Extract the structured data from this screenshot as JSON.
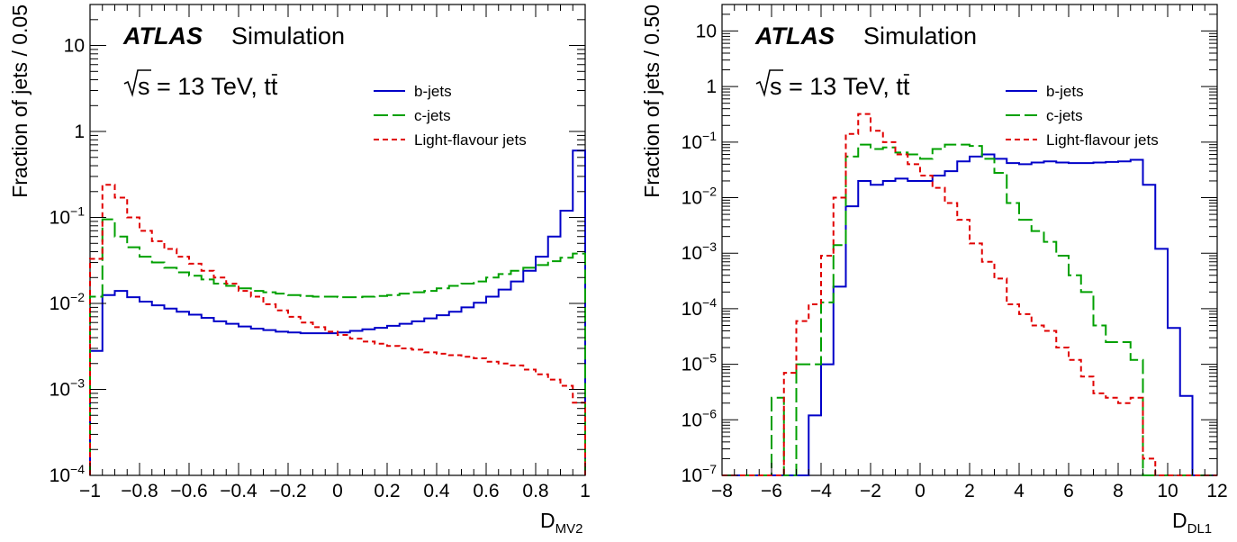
{
  "chart_data": [
    {
      "type": "line",
      "subtype": "histogram-step",
      "title": "",
      "atlas_label": "ATLAS",
      "atlas_sub": "Simulation",
      "annotation_prefix": "s = 13 TeV, t",
      "annotation_bar_letter": "t",
      "xlabel_main": "D",
      "xlabel_sub": "MV2",
      "ylabel": "Fraction of jets / 0.05",
      "xlim": [
        -1,
        1
      ],
      "ylim": [
        0.0001,
        30
      ],
      "log_y": true,
      "x_ticks": [
        {
          "v": -1,
          "label": "−1"
        },
        {
          "v": -0.8,
          "label": "−0.8"
        },
        {
          "v": -0.6,
          "label": "−0.6"
        },
        {
          "v": -0.4,
          "label": "−0.4"
        },
        {
          "v": -0.2,
          "label": "−0.2"
        },
        {
          "v": 0,
          "label": "0"
        },
        {
          "v": 0.2,
          "label": "0.2"
        },
        {
          "v": 0.4,
          "label": "0.4"
        },
        {
          "v": 0.6,
          "label": "0.6"
        },
        {
          "v": 0.8,
          "label": "0.8"
        },
        {
          "v": 1,
          "label": "1"
        }
      ],
      "y_ticks": [
        {
          "v": 0.0001,
          "base": "10",
          "exp": "−4"
        },
        {
          "v": 0.001,
          "base": "10",
          "exp": "−3"
        },
        {
          "v": 0.01,
          "base": "10",
          "exp": "−2"
        },
        {
          "v": 0.1,
          "base": "10",
          "exp": "−1"
        },
        {
          "v": 1,
          "base": "1",
          "exp": ""
        },
        {
          "v": 10,
          "base": "10",
          "exp": ""
        }
      ],
      "x_minor_step": 0.05,
      "legend_position": "top-right",
      "bin_edges": [
        -1.0,
        -0.95,
        -0.9,
        -0.85,
        -0.8,
        -0.75,
        -0.7,
        -0.65,
        -0.6,
        -0.55,
        -0.5,
        -0.45,
        -0.4,
        -0.35,
        -0.3,
        -0.25,
        -0.2,
        -0.15,
        -0.1,
        -0.05,
        0.0,
        0.05,
        0.1,
        0.15,
        0.2,
        0.25,
        0.3,
        0.35,
        0.4,
        0.45,
        0.5,
        0.55,
        0.6,
        0.65,
        0.7,
        0.75,
        0.8,
        0.85,
        0.9,
        0.95,
        1.0
      ],
      "series": [
        {
          "name": "b-jets",
          "color": "#0000c8",
          "style": "solid",
          "values": [
            0.0028,
            0.0125,
            0.014,
            0.0118,
            0.0105,
            0.0095,
            0.0087,
            0.008,
            0.0074,
            0.0068,
            0.0062,
            0.0058,
            0.0054,
            0.0051,
            0.0049,
            0.0047,
            0.0046,
            0.0045,
            0.0045,
            0.0045,
            0.0046,
            0.0048,
            0.005,
            0.0052,
            0.0055,
            0.0058,
            0.0062,
            0.0067,
            0.0073,
            0.008,
            0.009,
            0.0102,
            0.012,
            0.0145,
            0.018,
            0.024,
            0.035,
            0.06,
            0.12,
            0.6
          ]
        },
        {
          "name": "c-jets",
          "color": "#00a000",
          "style": "dashed",
          "values": [
            0.012,
            0.095,
            0.06,
            0.045,
            0.035,
            0.03,
            0.026,
            0.023,
            0.021,
            0.019,
            0.017,
            0.016,
            0.015,
            0.014,
            0.0135,
            0.013,
            0.0125,
            0.0122,
            0.012,
            0.012,
            0.0118,
            0.0118,
            0.012,
            0.0122,
            0.0125,
            0.013,
            0.0135,
            0.014,
            0.015,
            0.016,
            0.017,
            0.018,
            0.02,
            0.022,
            0.024,
            0.026,
            0.028,
            0.031,
            0.034,
            0.038
          ]
        },
        {
          "name": "Light-flavour jets",
          "color": "#e00000",
          "style": "dotted",
          "values": [
            0.033,
            0.24,
            0.17,
            0.1,
            0.07,
            0.053,
            0.043,
            0.035,
            0.029,
            0.024,
            0.02,
            0.017,
            0.014,
            0.012,
            0.0098,
            0.0083,
            0.007,
            0.006,
            0.0053,
            0.0047,
            0.0043,
            0.0039,
            0.0036,
            0.0034,
            0.0032,
            0.003,
            0.0029,
            0.0027,
            0.0026,
            0.0025,
            0.0024,
            0.0023,
            0.0021,
            0.002,
            0.0019,
            0.0017,
            0.0015,
            0.0013,
            0.0011,
            0.0007
          ]
        }
      ]
    },
    {
      "type": "line",
      "subtype": "histogram-step",
      "title": "",
      "atlas_label": "ATLAS",
      "atlas_sub": "Simulation",
      "annotation_prefix": "s = 13 TeV, t",
      "annotation_bar_letter": "t",
      "xlabel_main": "D",
      "xlabel_sub": "DL1",
      "ylabel": "Fraction of jets / 0.50",
      "xlim": [
        -8,
        12
      ],
      "ylim": [
        1e-07,
        30
      ],
      "log_y": true,
      "x_ticks": [
        {
          "v": -8,
          "label": "−8"
        },
        {
          "v": -6,
          "label": "−6"
        },
        {
          "v": -4,
          "label": "−4"
        },
        {
          "v": -2,
          "label": "−2"
        },
        {
          "v": 0,
          "label": "0"
        },
        {
          "v": 2,
          "label": "2"
        },
        {
          "v": 4,
          "label": "4"
        },
        {
          "v": 6,
          "label": "6"
        },
        {
          "v": 8,
          "label": "8"
        },
        {
          "v": 10,
          "label": "10"
        },
        {
          "v": 12,
          "label": "12"
        }
      ],
      "y_ticks": [
        {
          "v": 1e-07,
          "base": "10",
          "exp": "−7"
        },
        {
          "v": 1e-06,
          "base": "10",
          "exp": "−6"
        },
        {
          "v": 1e-05,
          "base": "10",
          "exp": "−5"
        },
        {
          "v": 0.0001,
          "base": "10",
          "exp": "−4"
        },
        {
          "v": 0.001,
          "base": "10",
          "exp": "−3"
        },
        {
          "v": 0.01,
          "base": "10",
          "exp": "−2"
        },
        {
          "v": 0.1,
          "base": "10",
          "exp": "−1"
        },
        {
          "v": 1,
          "base": "1",
          "exp": ""
        },
        {
          "v": 10,
          "base": "10",
          "exp": ""
        }
      ],
      "x_minor_step": 0.5,
      "legend_position": "top-right",
      "bin_edges": [
        -8.0,
        -7.5,
        -7.0,
        -6.5,
        -6.0,
        -5.5,
        -5.0,
        -4.5,
        -4.0,
        -3.5,
        -3.0,
        -2.5,
        -2.0,
        -1.5,
        -1.0,
        -0.5,
        0.0,
        0.5,
        1.0,
        1.5,
        2.0,
        2.5,
        3.0,
        3.5,
        4.0,
        4.5,
        5.0,
        5.5,
        6.0,
        6.5,
        7.0,
        7.5,
        8.0,
        8.5,
        9.0,
        9.5,
        10.0,
        10.5,
        11.0,
        11.5,
        12.0
      ],
      "series": [
        {
          "name": "b-jets",
          "color": "#0000c8",
          "style": "solid",
          "values": [
            1e-07,
            1e-07,
            1e-07,
            1e-07,
            1e-07,
            1e-07,
            1e-07,
            1.2e-06,
            1e-05,
            0.00025,
            0.007,
            0.02,
            0.017,
            0.02,
            0.022,
            0.02,
            0.02,
            0.025,
            0.03,
            0.045,
            0.055,
            0.06,
            0.05,
            0.042,
            0.04,
            0.043,
            0.045,
            0.043,
            0.042,
            0.042,
            0.043,
            0.044,
            0.045,
            0.048,
            0.017,
            0.0012,
            4.5e-05,
            2.7e-06,
            1e-07,
            1e-07
          ]
        },
        {
          "name": "c-jets",
          "color": "#00a000",
          "style": "dashed",
          "values": [
            1e-07,
            1e-07,
            1e-07,
            1e-07,
            2.5e-06,
            1e-07,
            1e-05,
            1e-05,
            0.00013,
            0.0014,
            0.055,
            0.09,
            0.075,
            0.08,
            0.065,
            0.06,
            0.05,
            0.075,
            0.09,
            0.09,
            0.085,
            0.05,
            0.028,
            0.008,
            0.004,
            0.0025,
            0.0016,
            0.0009,
            0.0004,
            0.0002,
            5e-05,
            2.5e-05,
            2.5e-05,
            1.2e-05,
            1e-07,
            1e-07,
            1e-07,
            1e-07,
            1e-07,
            1e-07
          ]
        },
        {
          "name": "Light-flavour jets",
          "color": "#e00000",
          "style": "dotted",
          "values": [
            1e-07,
            1e-07,
            1e-07,
            1e-07,
            1e-07,
            7e-06,
            6e-05,
            0.00012,
            0.0009,
            0.01,
            0.14,
            0.32,
            0.16,
            0.1,
            0.06,
            0.04,
            0.025,
            0.015,
            0.008,
            0.004,
            0.0015,
            0.0007,
            0.00035,
            0.00012,
            8e-05,
            5e-05,
            4e-05,
            2e-05,
            1.2e-05,
            6e-06,
            3e-06,
            2.5e-06,
            2e-06,
            2.5e-06,
            2e-07,
            1e-07,
            1e-07,
            1e-07,
            1e-07,
            1e-07
          ]
        }
      ]
    }
  ]
}
